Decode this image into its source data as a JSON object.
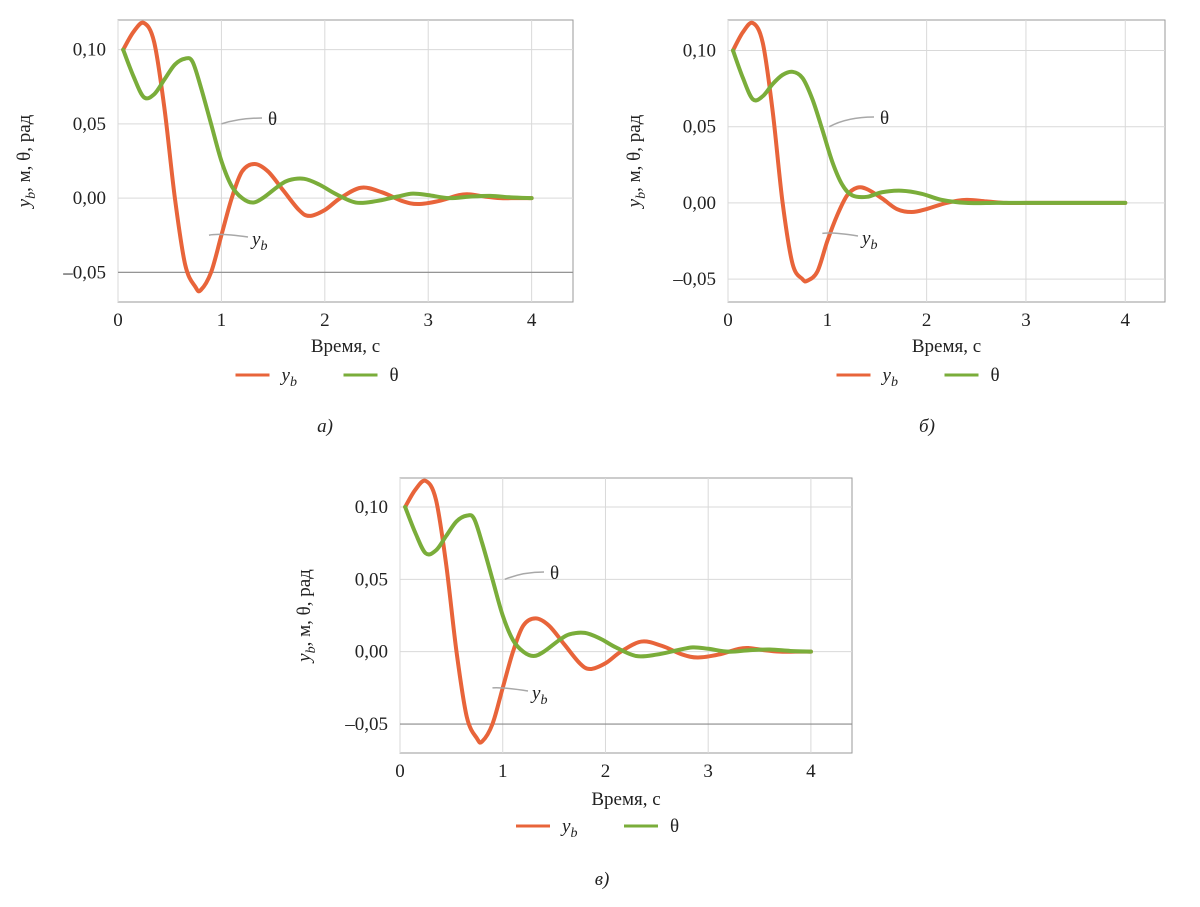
{
  "colors": {
    "yb": "#e8643a",
    "theta": "#7aad3a",
    "grid": "#d9d9d9",
    "frame": "#9a9a9a"
  },
  "chart_data": [
    {
      "type": "line",
      "panel_label": "а)",
      "xlabel": "Время, с",
      "ylabel": "yb, м, θ, рад",
      "ylabel_parts": {
        "y": "y",
        "sub": "b",
        "rest": ", м, θ, рад"
      },
      "xlim": [
        0,
        4.4
      ],
      "ylim": [
        -0.07,
        0.12
      ],
      "x_ticks": [
        0,
        1,
        2,
        3,
        4
      ],
      "x_tick_labels": [
        "0",
        "1",
        "2",
        "3",
        "4"
      ],
      "y_ticks": [
        -0.05,
        0.0,
        0.05,
        0.1
      ],
      "y_tick_labels": [
        "–0,05",
        "0,00",
        "0,05",
        "0,10"
      ],
      "ref_line_y": -0.05,
      "legend": [
        {
          "text_main": "y",
          "text_sub": "b"
        },
        {
          "text_main": "θ"
        }
      ],
      "annotations": {
        "theta": "θ",
        "yb_main": "y",
        "yb_sub": "b"
      },
      "series": [
        {
          "name": "yb",
          "x": [
            0.05,
            0.15,
            0.25,
            0.35,
            0.45,
            0.55,
            0.65,
            0.75,
            0.8,
            0.9,
            1.0,
            1.1,
            1.2,
            1.32,
            1.45,
            1.6,
            1.75,
            1.85,
            2.0,
            2.15,
            2.35,
            2.55,
            2.75,
            2.9,
            3.1,
            3.3,
            3.4,
            3.55,
            3.7,
            3.85,
            4.0
          ],
          "y": [
            0.1,
            0.112,
            0.118,
            0.105,
            0.06,
            0.0,
            -0.045,
            -0.06,
            -0.062,
            -0.05,
            -0.025,
            0.0,
            0.018,
            0.023,
            0.018,
            0.005,
            -0.008,
            -0.012,
            -0.008,
            0.0,
            0.007,
            0.004,
            -0.002,
            -0.004,
            -0.002,
            0.002,
            0.0025,
            0.001,
            0.0,
            0.0,
            0.0
          ]
        },
        {
          "name": "theta",
          "x": [
            0.05,
            0.15,
            0.25,
            0.35,
            0.45,
            0.55,
            0.65,
            0.72,
            0.8,
            0.9,
            1.0,
            1.1,
            1.2,
            1.3,
            1.4,
            1.55,
            1.65,
            1.8,
            1.95,
            2.1,
            2.3,
            2.5,
            2.7,
            2.85,
            3.0,
            3.2,
            3.4,
            3.6,
            3.8,
            4.0
          ],
          "y": [
            0.1,
            0.082,
            0.068,
            0.07,
            0.08,
            0.09,
            0.094,
            0.092,
            0.075,
            0.05,
            0.025,
            0.008,
            0.0,
            -0.003,
            0.0,
            0.008,
            0.012,
            0.013,
            0.009,
            0.003,
            -0.003,
            -0.002,
            0.001,
            0.003,
            0.002,
            0.0,
            0.001,
            0.0015,
            0.0005,
            0.0
          ]
        }
      ]
    },
    {
      "type": "line",
      "panel_label": "б)",
      "xlabel": "Время, с",
      "ylabel": "yb, м, θ, рад",
      "ylabel_parts": {
        "y": "y",
        "sub": "b",
        "rest": ", м, θ, рад"
      },
      "xlim": [
        0,
        4.4
      ],
      "ylim": [
        -0.065,
        0.12
      ],
      "x_ticks": [
        0,
        1,
        2,
        3,
        4
      ],
      "x_tick_labels": [
        "0",
        "1",
        "2",
        "3",
        "4"
      ],
      "y_ticks": [
        -0.05,
        0.0,
        0.05,
        0.1
      ],
      "y_tick_labels": [
        "–0,05",
        "0,00",
        "0,05",
        "0,10"
      ],
      "ref_line_y": null,
      "legend": [
        {
          "text_main": "y",
          "text_sub": "b"
        },
        {
          "text_main": "θ"
        }
      ],
      "annotations": {
        "theta": "θ",
        "yb_main": "y",
        "yb_sub": "b"
      },
      "series": [
        {
          "name": "yb",
          "x": [
            0.05,
            0.15,
            0.25,
            0.35,
            0.45,
            0.55,
            0.65,
            0.75,
            0.8,
            0.9,
            1.0,
            1.1,
            1.2,
            1.3,
            1.4,
            1.55,
            1.7,
            1.85,
            2.0,
            2.2,
            2.4,
            2.6,
            2.8,
            3.0,
            3.2,
            3.5,
            3.8,
            4.0
          ],
          "y": [
            0.1,
            0.112,
            0.118,
            0.105,
            0.06,
            0.0,
            -0.04,
            -0.05,
            -0.051,
            -0.045,
            -0.025,
            -0.008,
            0.005,
            0.01,
            0.009,
            0.003,
            -0.004,
            -0.006,
            -0.004,
            0.0,
            0.002,
            0.001,
            0.0,
            0.0,
            0.0,
            0.0,
            0.0,
            0.0
          ]
        },
        {
          "name": "theta",
          "x": [
            0.05,
            0.15,
            0.25,
            0.35,
            0.45,
            0.55,
            0.65,
            0.75,
            0.85,
            0.95,
            1.05,
            1.15,
            1.25,
            1.4,
            1.55,
            1.75,
            1.95,
            2.15,
            2.4,
            2.7,
            3.0,
            3.5,
            4.0
          ],
          "y": [
            0.1,
            0.082,
            0.068,
            0.07,
            0.078,
            0.084,
            0.086,
            0.082,
            0.068,
            0.048,
            0.027,
            0.012,
            0.005,
            0.004,
            0.007,
            0.008,
            0.006,
            0.002,
            0.0,
            0.0,
            0.0,
            0.0,
            0.0
          ]
        }
      ]
    },
    {
      "type": "line",
      "panel_label": "в)",
      "xlabel": "Время, с",
      "ylabel": "yb, м, θ, рад",
      "ylabel_parts": {
        "y": "y",
        "sub": "b",
        "rest": ", м, θ, рад"
      },
      "xlim": [
        0,
        4.4
      ],
      "ylim": [
        -0.07,
        0.12
      ],
      "x_ticks": [
        0,
        1,
        2,
        3,
        4
      ],
      "x_tick_labels": [
        "0",
        "1",
        "2",
        "3",
        "4"
      ],
      "y_ticks": [
        -0.05,
        0.0,
        0.05,
        0.1
      ],
      "y_tick_labels": [
        "–0,05",
        "0,00",
        "0,05",
        "0,10"
      ],
      "ref_line_y": -0.05,
      "legend": [
        {
          "text_main": "y",
          "text_sub": "b"
        },
        {
          "text_main": "θ"
        }
      ],
      "annotations": {
        "theta": "θ",
        "yb_main": "y",
        "yb_sub": "b"
      },
      "series": [
        {
          "name": "yb",
          "x": [
            0.05,
            0.15,
            0.25,
            0.35,
            0.45,
            0.55,
            0.65,
            0.75,
            0.8,
            0.9,
            1.0,
            1.1,
            1.2,
            1.32,
            1.45,
            1.6,
            1.75,
            1.85,
            2.0,
            2.15,
            2.35,
            2.55,
            2.75,
            2.9,
            3.1,
            3.3,
            3.4,
            3.55,
            3.7,
            3.85,
            4.0
          ],
          "y": [
            0.1,
            0.112,
            0.118,
            0.105,
            0.06,
            0.0,
            -0.045,
            -0.06,
            -0.062,
            -0.05,
            -0.025,
            0.0,
            0.018,
            0.023,
            0.018,
            0.005,
            -0.008,
            -0.012,
            -0.008,
            0.0,
            0.007,
            0.004,
            -0.002,
            -0.004,
            -0.002,
            0.002,
            0.0025,
            0.001,
            0.0,
            0.0,
            0.0
          ]
        },
        {
          "name": "theta",
          "x": [
            0.05,
            0.15,
            0.25,
            0.35,
            0.45,
            0.55,
            0.65,
            0.72,
            0.8,
            0.9,
            1.0,
            1.1,
            1.2,
            1.3,
            1.4,
            1.55,
            1.65,
            1.8,
            1.95,
            2.1,
            2.3,
            2.5,
            2.7,
            2.85,
            3.0,
            3.2,
            3.4,
            3.6,
            3.8,
            4.0
          ],
          "y": [
            0.1,
            0.082,
            0.068,
            0.07,
            0.08,
            0.09,
            0.094,
            0.092,
            0.075,
            0.05,
            0.025,
            0.008,
            0.0,
            -0.003,
            0.0,
            0.008,
            0.012,
            0.013,
            0.009,
            0.003,
            -0.003,
            -0.002,
            0.001,
            0.003,
            0.002,
            0.0,
            0.001,
            0.0015,
            0.0005,
            0.0
          ]
        }
      ]
    }
  ]
}
